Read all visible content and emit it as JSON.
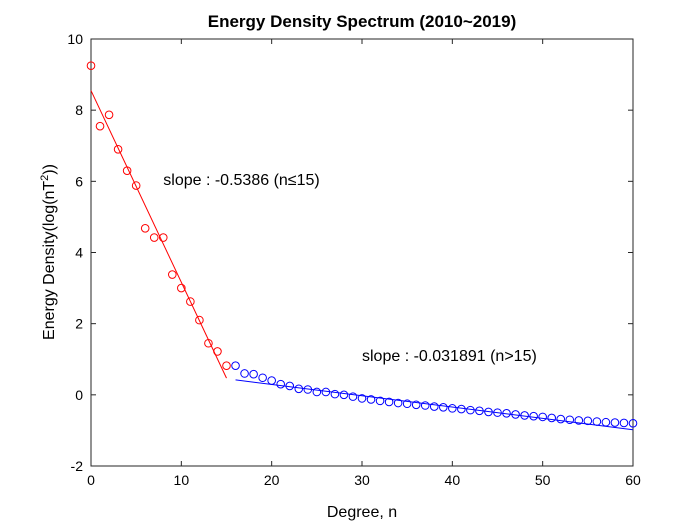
{
  "chart_data": {
    "type": "scatter",
    "title": "Energy Density Spectrum (2010~2019)",
    "xlabel": "Degree, n",
    "ylabel_main": "Energy Density(log(nT",
    "ylabel_sup": "2",
    "ylabel_close": "))",
    "xlim": [
      0,
      60
    ],
    "ylim": [
      -2,
      10
    ],
    "xticks": [
      0,
      10,
      20,
      30,
      40,
      50,
      60
    ],
    "yticks": [
      -2,
      0,
      2,
      4,
      6,
      8,
      10
    ],
    "grid": false,
    "series": [
      {
        "color": "#ff0000",
        "marker": "circle",
        "x": [
          0,
          1,
          2,
          3,
          4,
          5,
          6,
          7,
          8,
          9,
          10,
          11,
          12,
          13,
          14,
          15
        ],
        "y": [
          9.25,
          7.55,
          7.87,
          6.9,
          6.3,
          5.88,
          4.68,
          4.42,
          4.42,
          3.38,
          3.0,
          2.62,
          2.1,
          1.45,
          1.22,
          0.82
        ]
      },
      {
        "color": "#0000ff",
        "marker": "circle",
        "x": [
          16,
          17,
          18,
          19,
          20,
          21,
          22,
          23,
          24,
          25,
          26,
          27,
          28,
          29,
          30,
          31,
          32,
          33,
          34,
          35,
          36,
          37,
          38,
          39,
          40,
          41,
          42,
          43,
          44,
          45,
          46,
          47,
          48,
          49,
          50,
          51,
          52,
          53,
          54,
          55,
          56,
          57,
          58,
          59,
          60
        ],
        "y": [
          0.82,
          0.6,
          0.58,
          0.48,
          0.4,
          0.3,
          0.25,
          0.17,
          0.15,
          0.08,
          0.08,
          0.02,
          0.0,
          -0.05,
          -0.1,
          -0.13,
          -0.17,
          -0.2,
          -0.23,
          -0.25,
          -0.28,
          -0.3,
          -0.33,
          -0.35,
          -0.38,
          -0.4,
          -0.43,
          -0.45,
          -0.48,
          -0.5,
          -0.52,
          -0.55,
          -0.58,
          -0.6,
          -0.62,
          -0.65,
          -0.68,
          -0.7,
          -0.72,
          -0.73,
          -0.75,
          -0.77,
          -0.78,
          -0.79,
          -0.8
        ]
      }
    ],
    "fit_lines": [
      {
        "color": "#ff0000",
        "x": [
          0,
          15
        ],
        "y": [
          8.55,
          0.47
        ]
      },
      {
        "color": "#0000ff",
        "x": [
          16,
          60
        ],
        "y": [
          0.42,
          -0.98
        ]
      }
    ],
    "annotations": [
      {
        "text": "slope : -0.5386 (n≤15)",
        "x": 8,
        "y": 5.9
      },
      {
        "text": "slope : -0.031891 (n>15)",
        "x": 30,
        "y": 0.95
      }
    ]
  }
}
